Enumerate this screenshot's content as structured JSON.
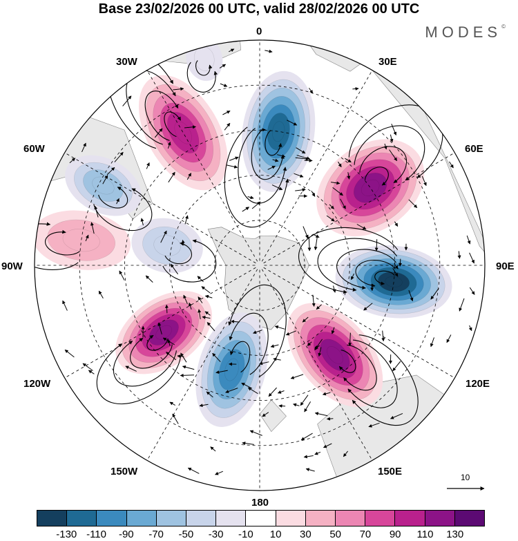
{
  "title": "Base 23/02/2026 00 UTC, valid 28/02/2026 00 UTC",
  "brand": "MODES",
  "brand_mark": "©",
  "longitude_labels": {
    "top": "0",
    "n30e": "30E",
    "n60e": "60E",
    "e90": "90E",
    "s120e": "120E",
    "s150e": "150E",
    "bottom": "180",
    "s150w": "150W",
    "s120w": "120W",
    "w90": "90W",
    "n60w": "60W",
    "n30w": "30W"
  },
  "vector_scale": "10",
  "colorbar": {
    "colors": [
      "#143f5e",
      "#1f6a94",
      "#3b8abe",
      "#6aa9d3",
      "#9fc3e1",
      "#c8d4ea",
      "#e5e2ef",
      "#ffffff",
      "#fbdce2",
      "#f5b1c3",
      "#ec86b3",
      "#d7469a",
      "#b9218d",
      "#8c1387",
      "#5c0a73"
    ],
    "ticks": [
      "-130",
      "-110",
      "-90",
      "-70",
      "-50",
      "-30",
      "-10",
      "10",
      "30",
      "50",
      "70",
      "90",
      "110",
      "130"
    ]
  },
  "anomaly_centers": [
    {
      "name": "neg-0e",
      "lon": 8,
      "dist": 0.6,
      "value": -120,
      "rx": 0.16,
      "ry": 0.27
    },
    {
      "name": "pos-55e",
      "lon": 55,
      "dist": 0.6,
      "value": 115,
      "rx": 0.19,
      "ry": 0.26
    },
    {
      "name": "neg-95e",
      "lon": 97,
      "dist": 0.6,
      "value": -135,
      "rx": 0.16,
      "ry": 0.26
    },
    {
      "name": "pos-140e",
      "lon": 140,
      "dist": 0.52,
      "value": 125,
      "rx": 0.16,
      "ry": 0.27
    },
    {
      "name": "neg-165w",
      "lon": 195,
      "dist": 0.48,
      "value": -95,
      "rx": 0.15,
      "ry": 0.26
    },
    {
      "name": "pos-125w",
      "lon": 235,
      "dist": 0.52,
      "value": 110,
      "rx": 0.15,
      "ry": 0.24
    },
    {
      "name": "pos-80w",
      "lon": 278,
      "dist": 0.8,
      "value": 30,
      "rx": 0.13,
      "ry": 0.22
    },
    {
      "name": "neg-80w",
      "lon": 282,
      "dist": 0.42,
      "value": -45,
      "rx": 0.12,
      "ry": 0.16
    },
    {
      "name": "neg-65w",
      "lon": 297,
      "dist": 0.78,
      "value": -65,
      "rx": 0.12,
      "ry": 0.18
    },
    {
      "name": "pos-35w",
      "lon": 330,
      "dist": 0.68,
      "value": 105,
      "rx": 0.16,
      "ry": 0.28
    },
    {
      "name": "pos-20w-weak",
      "lon": 345,
      "dist": 0.95,
      "value": -25,
      "rx": 0.08,
      "ry": 0.1
    }
  ]
}
